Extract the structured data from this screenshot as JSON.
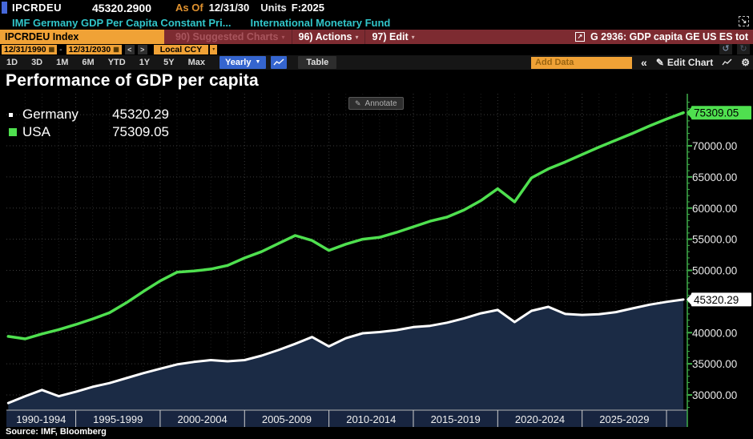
{
  "titlebar": {
    "ticker": "IPCRDEU",
    "value": "45320.2900",
    "as_of_label": "As Of",
    "as_of_date": "12/31/30",
    "units_label": "Units",
    "units_value": "F:2025",
    "description": "IMF Germany GDP Per Capita Constant Pri...",
    "source_name": "International Monetary Fund"
  },
  "ribbon": {
    "security_tag": "IPCRDEU Index",
    "suggested_charts": "90) Suggested Charts",
    "actions": "96) Actions",
    "edit": "97) Edit",
    "chart_id": "G 2936: GDP capita GE US ES tot"
  },
  "toolbar": {
    "date_from": "12/31/1990",
    "date_to": "12/31/2030",
    "currency": "Local CCY",
    "periods": [
      "1D",
      "3D",
      "1M",
      "6M",
      "YTD",
      "1Y",
      "5Y",
      "Max"
    ],
    "frequency": "Yearly",
    "table_label": "Table",
    "add_data_placeholder": "Add Data",
    "edit_chart_label": "Edit Chart"
  },
  "chart": {
    "title": "Performance of GDP per capita",
    "annotate_label": "Annotate",
    "source": "Source: IMF, Bloomberg",
    "legend": [
      {
        "name": "Germany",
        "value": "45320.29",
        "color": "#ffffff"
      },
      {
        "name": "USA",
        "value": "75309.05",
        "color": "#4fe04f"
      }
    ]
  },
  "chart_data": {
    "type": "line",
    "title": "Performance of GDP per capita",
    "x_start_year": 1990,
    "x_end_year": 2030,
    "categories": [
      "1990-1994",
      "1995-1999",
      "2000-2004",
      "2005-2009",
      "2010-2014",
      "2015-2019",
      "2020-2024",
      "2025-2029"
    ],
    "y_ticks": [
      30000,
      35000,
      40000,
      45000,
      50000,
      55000,
      60000,
      65000,
      70000,
      75000
    ],
    "y_tick_format": "0.00",
    "ylim": [
      27600,
      78400
    ],
    "grid": true,
    "legend_position": "top-left",
    "colors": {
      "background": "#000000",
      "area_fill": "#1b2b45",
      "axis_green": "#3fae4a",
      "band_fill": "#182540"
    },
    "series": [
      {
        "name": "Germany",
        "color": "#ffffff",
        "area_fill": "#1b2b45",
        "last_label": "45320.29",
        "values": [
          28700,
          29800,
          30800,
          29800,
          30500,
          31300,
          31900,
          32700,
          33500,
          34200,
          34900,
          35300,
          35600,
          35400,
          35600,
          36300,
          37200,
          38200,
          39300,
          37800,
          39100,
          39900,
          40100,
          40400,
          40900,
          41100,
          41600,
          42300,
          43100,
          43650,
          41700,
          43500,
          44150,
          43000,
          42850,
          42950,
          43300,
          43900,
          44500,
          44950,
          45320.29
        ]
      },
      {
        "name": "USA",
        "color": "#4fe04f",
        "area_fill": null,
        "last_label": "75309.05",
        "values": [
          39400,
          39000,
          39800,
          40500,
          41300,
          42200,
          43200,
          44800,
          46600,
          48300,
          49700,
          49900,
          50200,
          50800,
          52000,
          53000,
          54300,
          55600,
          54800,
          53200,
          54200,
          55000,
          55300,
          56100,
          57000,
          57900,
          58550,
          59700,
          61200,
          63100,
          61000,
          64850,
          66300,
          67400,
          68600,
          69800,
          70900,
          72000,
          73200,
          74300,
          75309.05
        ]
      }
    ]
  }
}
